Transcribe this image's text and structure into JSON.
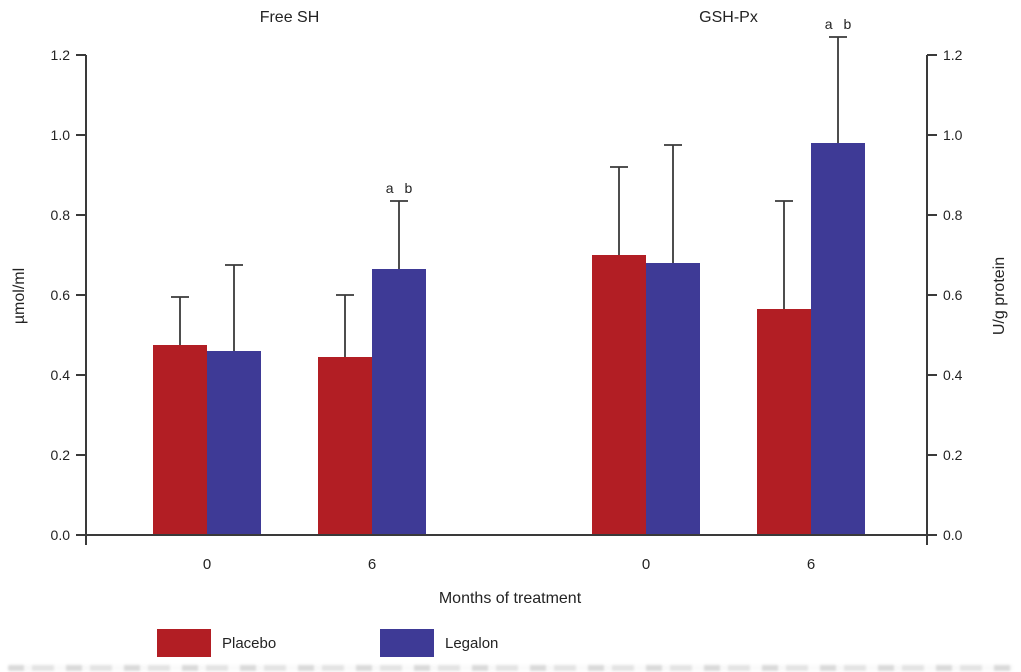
{
  "chart_data": {
    "type": "bar",
    "layout": "two-panel grouped bars, shared baseline, dual y-axes",
    "xlabel": "Months of treatment",
    "categories": [
      "0",
      "6"
    ],
    "ylim": [
      0,
      1.2
    ],
    "yticks": [
      0,
      0.2,
      0.4,
      0.6,
      0.8,
      1.0,
      1.2
    ],
    "grid": false,
    "error_bars": "upper-only with caps",
    "legend_position": "bottom",
    "panels": [
      {
        "title": "Free SH",
        "ylabel": "µmol/ml",
        "axis_side": "left",
        "series": [
          {
            "name": "Placebo",
            "color": "#b21e24",
            "values": [
              0.475,
              0.445
            ],
            "errors_up": [
              0.12,
              0.155
            ]
          },
          {
            "name": "Legalon",
            "color": "#3e3a96",
            "values": [
              0.46,
              0.665
            ],
            "errors_up": [
              0.215,
              0.17
            ]
          }
        ],
        "annotations": [
          {
            "text": "a b",
            "category": "6",
            "series": "Legalon"
          }
        ]
      },
      {
        "title": "GSH-Px",
        "ylabel": "U/g protein",
        "axis_side": "right",
        "series": [
          {
            "name": "Placebo",
            "color": "#b21e24",
            "values": [
              0.7,
              0.565
            ],
            "errors_up": [
              0.22,
              0.27
            ]
          },
          {
            "name": "Legalon",
            "color": "#3e3a96",
            "values": [
              0.68,
              0.98
            ],
            "errors_up": [
              0.295,
              0.265
            ]
          }
        ],
        "annotations": [
          {
            "text": "a b",
            "category": "6",
            "series": "Legalon"
          }
        ]
      }
    ],
    "legend": [
      {
        "label": "Placebo",
        "color": "#b21e24"
      },
      {
        "label": "Legalon",
        "color": "#3e3a96"
      }
    ],
    "colors": {
      "placebo": "#b21e24",
      "legalon": "#3e3a96",
      "axis": "#3a3a3a",
      "text": "#232323",
      "background": "#ffffff"
    }
  }
}
